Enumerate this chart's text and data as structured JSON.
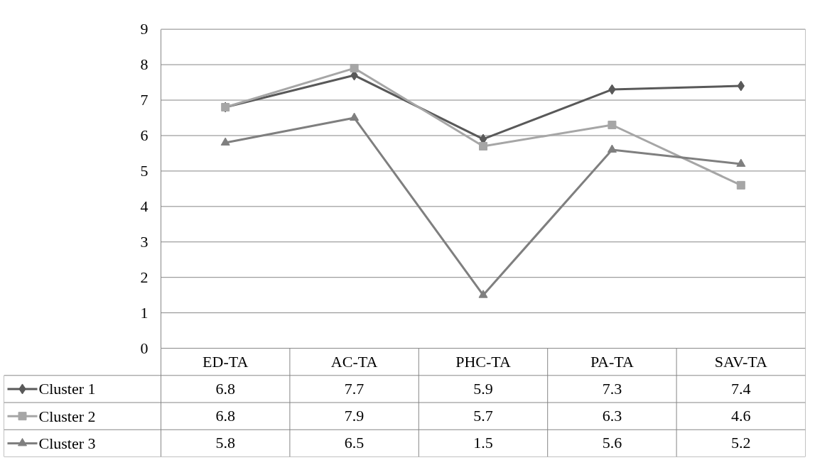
{
  "chart_data": {
    "type": "line",
    "categories": [
      "ED-TA",
      "AC-TA",
      "PHC-TA",
      "PA-TA",
      "SAV-TA"
    ],
    "series": [
      {
        "name": "Cluster 1",
        "color": "#595959",
        "marker": "diamond",
        "values": [
          6.8,
          7.7,
          5.9,
          7.3,
          7.4
        ]
      },
      {
        "name": "Cluster 2",
        "color": "#a6a6a6",
        "marker": "square",
        "values": [
          6.8,
          7.9,
          5.7,
          6.3,
          4.6
        ]
      },
      {
        "name": "Cluster 3",
        "color": "#7f7f7f",
        "marker": "triangle",
        "values": [
          5.8,
          6.5,
          1.5,
          5.6,
          5.2
        ]
      }
    ],
    "ylim": [
      0,
      9
    ],
    "yticks": [
      0,
      1,
      2,
      3,
      4,
      5,
      6,
      7,
      8,
      9
    ],
    "grid": "y",
    "legend": "bottom",
    "data_labels": true,
    "line_style": "solid"
  }
}
